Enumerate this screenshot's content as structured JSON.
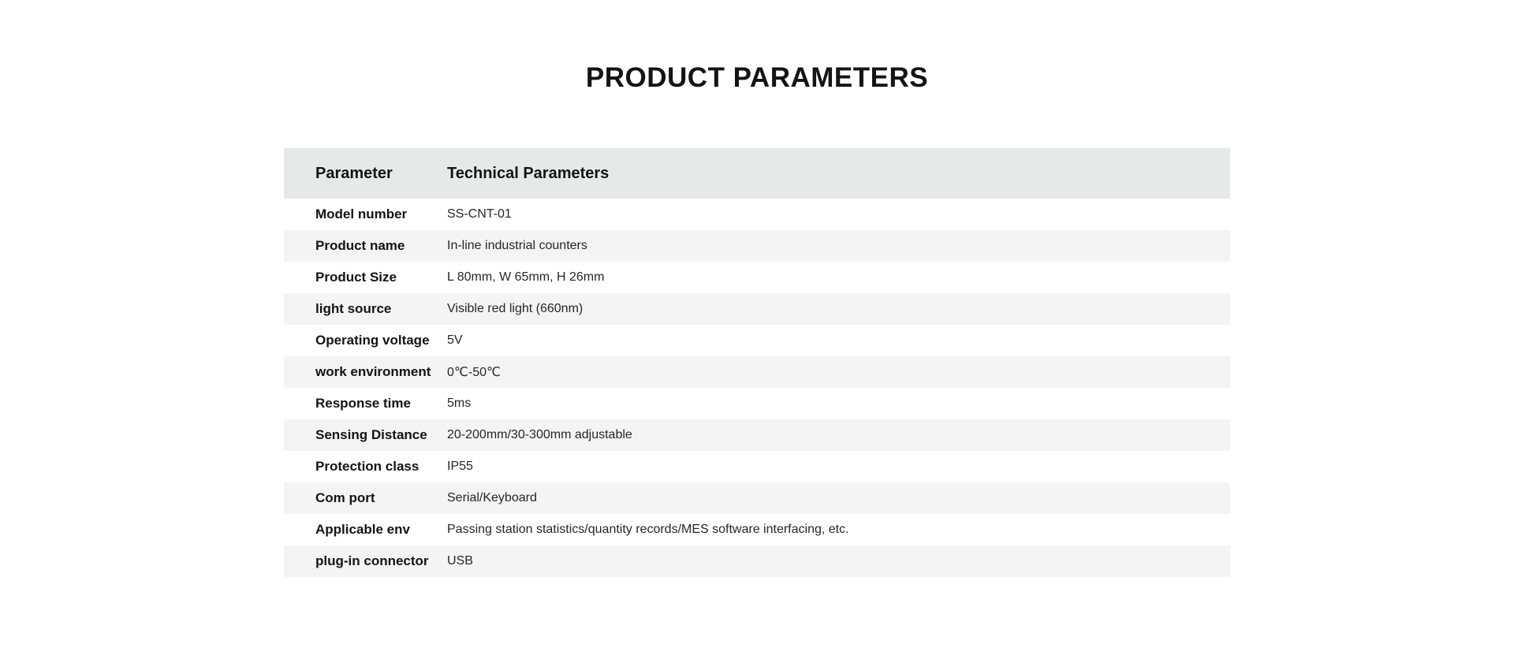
{
  "page": {
    "title": "PRODUCT PARAMETERS"
  },
  "table": {
    "headers": [
      "Parameter",
      "Technical Parameters"
    ],
    "rows": [
      {
        "label": "Model number",
        "value": "SS-CNT-01"
      },
      {
        "label": "Product name",
        "value": "In-line industrial counters"
      },
      {
        "label": "Product Size",
        "value": "L 80mm, W 65mm, H 26mm"
      },
      {
        "label": "light source",
        "value": "Visible red light (660nm)"
      },
      {
        "label": "Operating voltage",
        "value": "5V"
      },
      {
        "label": "work environment",
        "value": "0℃-50℃"
      },
      {
        "label": "Response time",
        "value": "5ms"
      },
      {
        "label": "Sensing Distance",
        "value": "20-200mm/30-300mm adjustable"
      },
      {
        "label": "Protection class",
        "value": "IP55"
      },
      {
        "label": "Com port",
        "value": "Serial/Keyboard"
      },
      {
        "label": "Applicable env",
        "value": "Passing station statistics/quantity records/MES software interfacing, etc."
      },
      {
        "label": "plug-in connector",
        "value": "USB"
      }
    ]
  },
  "colors": {
    "header_bg": "#e6e9ea",
    "stripe_bg": "#f2f4f5",
    "label_text": "#141414",
    "value_text": "#262626"
  }
}
